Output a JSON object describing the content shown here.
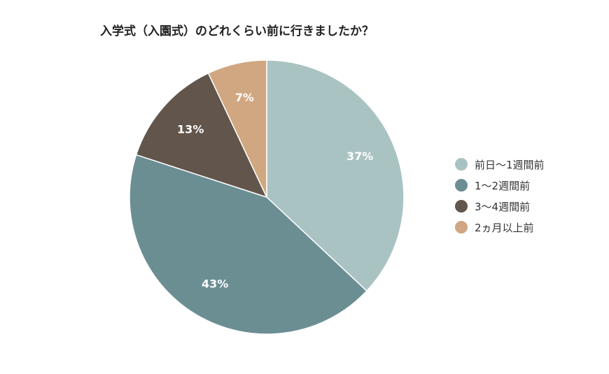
{
  "chart_data": {
    "type": "pie",
    "title": "入学式（入園式）のどれくらい前に行きましたか？",
    "legend_position": "right",
    "slices": [
      {
        "label": "前日〜1週間前",
        "value": 37,
        "display": "37%",
        "color": "#a9c3c2"
      },
      {
        "label": "1〜2週間前",
        "value": 43,
        "display": "43%",
        "color": "#6b8e93"
      },
      {
        "label": "3〜4週間前",
        "value": 13,
        "display": "13%",
        "color": "#61554c"
      },
      {
        "label": "2ヵ月以上前",
        "value": 7,
        "display": "7%",
        "color": "#d0a780"
      }
    ]
  }
}
